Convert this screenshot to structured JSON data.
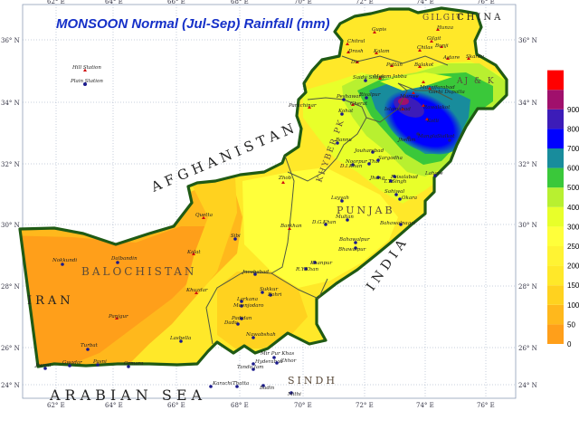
{
  "title": "MONSOON Normal (Jul-Sep) Rainfall (mm)",
  "colors": {
    "ocean": "#ffffff",
    "outside": "#ffffff",
    "border": "#1f5a14",
    "title": "#1530c8",
    "graticule": "#8f9fb8"
  },
  "axes": {
    "lon_ticks": [
      "62° E",
      "64° E",
      "66° E",
      "68° E",
      "70° E",
      "72° E",
      "74° E",
      "76° E"
    ],
    "lat_ticks": [
      "36° N",
      "34° N",
      "32° N",
      "30° N",
      "28° N",
      "26° N",
      "24° N"
    ]
  },
  "legend": {
    "levels": [
      {
        "label": "0",
        "color": "#ff9f1a"
      },
      {
        "label": "50",
        "color": "#ffb81c"
      },
      {
        "label": "100",
        "color": "#ffd21f"
      },
      {
        "label": "150",
        "color": "#ffe829"
      },
      {
        "label": "200",
        "color": "#fff333"
      },
      {
        "label": "250",
        "color": "#ffff3a"
      },
      {
        "label": "300",
        "color": "#e8ff2a"
      },
      {
        "label": "400",
        "color": "#b8f030"
      },
      {
        "label": "500",
        "color": "#3ac83a"
      },
      {
        "label": "600",
        "color": "#188c9c"
      },
      {
        "label": "700",
        "color": "#0000ff"
      },
      {
        "label": "800",
        "color": "#3c1cb8"
      },
      {
        "label": "900",
        "color": "#a0106c"
      },
      {
        "label": "",
        "color": "#ff0000"
      }
    ]
  },
  "labels": {
    "countries": [
      "AFGHANISTAN",
      "IRAN",
      "INDIA",
      "CHINA"
    ],
    "sea": "ARABIAN SEA",
    "provinces": [
      "BALOCHISTAN",
      "PUNJAB",
      "SINDH",
      "KHYBER PK",
      "GILGIT",
      "AJ & K"
    ]
  },
  "stations": [
    {
      "name": "Gupis"
    },
    {
      "name": "Gilgit"
    },
    {
      "name": "Hunza"
    },
    {
      "name": "Chitral"
    },
    {
      "name": "Drosh"
    },
    {
      "name": "Chilas"
    },
    {
      "name": "Bunji"
    },
    {
      "name": "Astore"
    },
    {
      "name": "Skardu"
    },
    {
      "name": "Dir"
    },
    {
      "name": "Kalam"
    },
    {
      "name": "Pattan"
    },
    {
      "name": "Balakot"
    },
    {
      "name": "Saidu Sharif"
    },
    {
      "name": "Malam Jabba"
    },
    {
      "name": "Parachinar"
    },
    {
      "name": "Peshawar"
    },
    {
      "name": "Risalpur"
    },
    {
      "name": "Cherat"
    },
    {
      "name": "Kohat"
    },
    {
      "name": "Bannu"
    },
    {
      "name": "D.I.Khan"
    },
    {
      "name": "Zhob"
    },
    {
      "name": "Quetta"
    },
    {
      "name": "Sibi"
    },
    {
      "name": "Barkhan"
    },
    {
      "name": "Kalat"
    },
    {
      "name": "Dalbandin"
    },
    {
      "name": "Nokkundi"
    },
    {
      "name": "Khuzdar"
    },
    {
      "name": "Panjgur"
    },
    {
      "name": "Lasbella"
    },
    {
      "name": "Turbat"
    },
    {
      "name": "Jiwani"
    },
    {
      "name": "Gwadar"
    },
    {
      "name": "Pasni"
    },
    {
      "name": "Ormara"
    },
    {
      "name": "Jacobabad"
    },
    {
      "name": "Larkana"
    },
    {
      "name": "Sukkur"
    },
    {
      "name": "Rohri"
    },
    {
      "name": "Moenjodaro"
    },
    {
      "name": "Dadu"
    },
    {
      "name": "Padidan"
    },
    {
      "name": "Nawabshah"
    },
    {
      "name": "Hyderabad"
    },
    {
      "name": "Mir Pur Khas"
    },
    {
      "name": "Chhor"
    },
    {
      "name": "Tando Jam"
    },
    {
      "name": "Thatta"
    },
    {
      "name": "Karachi"
    },
    {
      "name": "Badin"
    },
    {
      "name": "Mithi"
    },
    {
      "name": "Khanpur"
    },
    {
      "name": "R.Y.Khan"
    },
    {
      "name": "D.G.Khan"
    },
    {
      "name": "Multan"
    },
    {
      "name": "Bahawalpur"
    },
    {
      "name": "Bahawalnagar"
    },
    {
      "name": "Bhawalpur"
    },
    {
      "name": "Layyah"
    },
    {
      "name": "Noorpur Thal"
    },
    {
      "name": "Jouharabad"
    },
    {
      "name": "Sargodha"
    },
    {
      "name": "Jhang"
    },
    {
      "name": "T.T.Singh"
    },
    {
      "name": "Faisalabad"
    },
    {
      "name": "Sahiwal"
    },
    {
      "name": "Okara"
    },
    {
      "name": "Lahore"
    },
    {
      "name": "Sialkot"
    },
    {
      "name": "Jhelum"
    },
    {
      "name": "Islamabad"
    },
    {
      "name": "Murree"
    },
    {
      "name": "Mangla"
    },
    {
      "name": "Kotli"
    },
    {
      "name": "Rawalakot"
    },
    {
      "name": "Muzaffarabad"
    },
    {
      "name": "Garhi Dupatta"
    },
    {
      "name": "Plain Station"
    },
    {
      "name": "Hill Station"
    }
  ]
}
